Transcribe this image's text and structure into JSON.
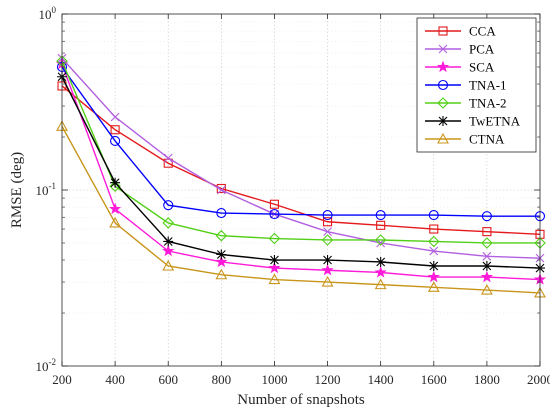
{
  "chart_data": {
    "type": "line",
    "xlabel": "Number of snapshots",
    "ylabel": "RMSE (deg)",
    "yscale": "log",
    "xlim": [
      200,
      2000
    ],
    "ylim": [
      0.01,
      1
    ],
    "grid": true,
    "legend_position": "top-right",
    "x": [
      200,
      400,
      600,
      800,
      1000,
      1200,
      1400,
      1600,
      1800,
      2000
    ],
    "x_tick_labels": [
      "200",
      "400",
      "600",
      "800",
      "1000",
      "1200",
      "1400",
      "1600",
      "1800",
      "2000"
    ],
    "y_ticks": [
      {
        "value": 0.01,
        "base": "10",
        "exp": "-2"
      },
      {
        "value": 0.1,
        "base": "10",
        "exp": "-1"
      },
      {
        "value": 1,
        "base": "10",
        "exp": "0"
      }
    ],
    "series": [
      {
        "name": "CCA",
        "color": "#e41a1c",
        "marker": "square",
        "values": [
          0.39,
          0.22,
          0.142,
          0.102,
          0.083,
          0.066,
          0.063,
          0.06,
          0.058,
          0.056
        ]
      },
      {
        "name": "PCA",
        "color": "#b15fe0",
        "marker": "x",
        "values": [
          0.56,
          0.26,
          0.152,
          0.1,
          0.073,
          0.058,
          0.05,
          0.045,
          0.042,
          0.041
        ]
      },
      {
        "name": "SCA",
        "color": "#ff1ad9",
        "marker": "star",
        "values": [
          0.52,
          0.078,
          0.045,
          0.039,
          0.036,
          0.035,
          0.034,
          0.032,
          0.032,
          0.031
        ]
      },
      {
        "name": "TNA-1",
        "color": "#0000ff",
        "marker": "circle",
        "values": [
          0.5,
          0.19,
          0.082,
          0.074,
          0.073,
          0.072,
          0.072,
          0.072,
          0.071,
          0.071
        ]
      },
      {
        "name": "TNA-2",
        "color": "#52d017",
        "marker": "diamond",
        "values": [
          0.54,
          0.105,
          0.065,
          0.055,
          0.053,
          0.052,
          0.052,
          0.051,
          0.05,
          0.05
        ]
      },
      {
        "name": "TwETNA",
        "color": "#000000",
        "marker": "asterisk",
        "values": [
          0.44,
          0.11,
          0.051,
          0.043,
          0.04,
          0.04,
          0.039,
          0.037,
          0.037,
          0.036
        ]
      },
      {
        "name": "CTNA",
        "color": "#c8951a",
        "marker": "triangle",
        "values": [
          0.23,
          0.065,
          0.037,
          0.033,
          0.031,
          0.03,
          0.029,
          0.028,
          0.027,
          0.026
        ]
      }
    ]
  }
}
